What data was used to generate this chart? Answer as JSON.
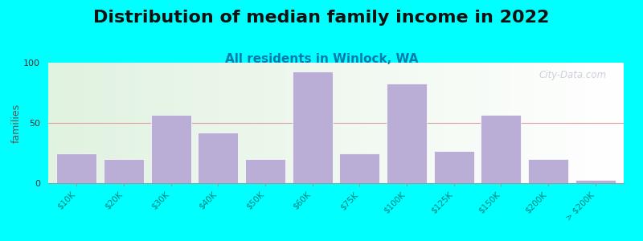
{
  "title": "Distribution of median family income in 2022",
  "subtitle": "All residents in Winlock, WA",
  "ylabel": "families",
  "categories": [
    "$10K",
    "$20K",
    "$30K",
    "$40K",
    "$50K",
    "$60K",
    "$75K",
    "$100K",
    "$125K",
    "$150K",
    "$200K",
    "> $200K"
  ],
  "values": [
    25,
    20,
    57,
    42,
    20,
    93,
    25,
    83,
    27,
    57,
    20,
    3
  ],
  "bar_color": "#bbaed6",
  "bar_edge_color": "#ffffff",
  "ylim": [
    0,
    100
  ],
  "yticks": [
    0,
    50,
    100
  ],
  "background_color": "#00ffff",
  "grid_color": "#dda0a0",
  "title_fontsize": 16,
  "subtitle_fontsize": 11,
  "ylabel_fontsize": 9,
  "tick_color": "#008080",
  "watermark_text": "City-Data.com"
}
